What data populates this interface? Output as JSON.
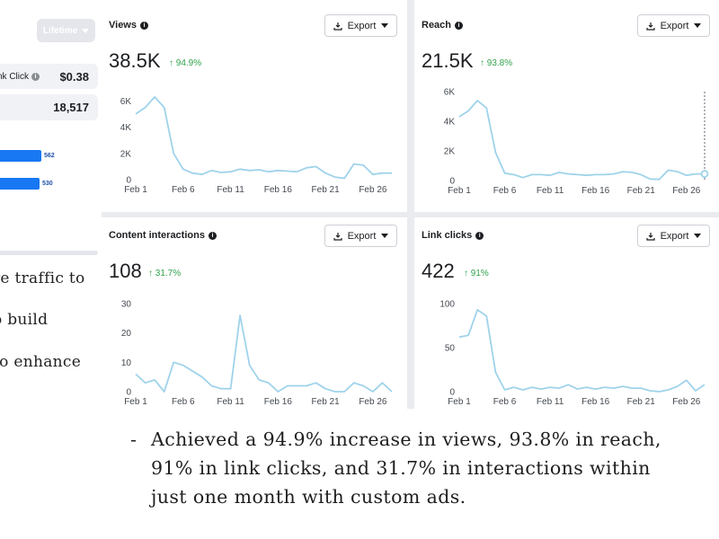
{
  "left_panel": {
    "date_range": "Lifetime",
    "cpc_label": "nk Click",
    "cpc_value": "$0.38",
    "total_value": "18,517",
    "bar1_value": "562",
    "bar1_fraction": 0.42,
    "bar2_value": "530",
    "bar2_fraction": 0.4,
    "text_lines": [
      "re traffic to",
      "o build",
      "to enhance"
    ]
  },
  "export_label": "Export",
  "cards": {
    "views": {
      "title": "Views",
      "value": "38.5K",
      "delta": "↑ 94.9%"
    },
    "reach": {
      "title": "Reach",
      "value": "21.5K",
      "delta": "↑ 93.8%"
    },
    "interactions": {
      "title": "Content interactions",
      "value": "108",
      "delta": "↑ 31.7%"
    },
    "link_clicks": {
      "title": "Link clicks",
      "value": "422",
      "delta": "↑ 91%"
    }
  },
  "caption": {
    "bullet": "-",
    "lines": [
      "Achieved a 94.9% increase in views, 93.8% in reach,",
      "91% in link clicks, and 31.7% in interactions within",
      "just one month with custom ads."
    ]
  },
  "colors": {
    "line": "#9fd3ea",
    "accent": "#31a24c",
    "bar": "#1877f2"
  },
  "chart_data": [
    {
      "id": "views",
      "type": "line",
      "title": "Views",
      "x": [
        1,
        2,
        3,
        4,
        5,
        6,
        7,
        8,
        9,
        10,
        11,
        12,
        13,
        14,
        15,
        16,
        17,
        18,
        19,
        20,
        21,
        22,
        23,
        24,
        25,
        26,
        27,
        28
      ],
      "xticks": [
        "Feb 1",
        "Feb 6",
        "Feb 11",
        "Feb 16",
        "Feb 21",
        "Feb 26"
      ],
      "xtick_positions": [
        1,
        6,
        11,
        16,
        21,
        26
      ],
      "yticks": [
        0,
        2000,
        4000,
        6000
      ],
      "ytick_labels": [
        "0",
        "2K",
        "4K",
        "6K"
      ],
      "ylim": [
        0,
        6500
      ],
      "values": [
        5000,
        5500,
        6300,
        5500,
        2000,
        800,
        500,
        400,
        700,
        550,
        600,
        800,
        700,
        750,
        600,
        700,
        650,
        600,
        900,
        1000,
        500,
        200,
        100,
        1200,
        1100,
        400,
        500,
        500
      ]
    },
    {
      "id": "reach",
      "type": "line",
      "title": "Reach",
      "x": [
        1,
        2,
        3,
        4,
        5,
        6,
        7,
        8,
        9,
        10,
        11,
        12,
        13,
        14,
        15,
        16,
        17,
        18,
        19,
        20,
        21,
        22,
        23,
        24,
        25,
        26,
        27,
        28
      ],
      "xticks": [
        "Feb 1",
        "Feb 6",
        "Feb 11",
        "Feb 16",
        "Feb 21",
        "Feb 26"
      ],
      "xtick_positions": [
        1,
        6,
        11,
        16,
        21,
        26
      ],
      "yticks": [
        0,
        2000,
        4000,
        6000
      ],
      "ytick_labels": [
        "0",
        "2K",
        "4K",
        "6K"
      ],
      "ylim": [
        0,
        6000
      ],
      "values": [
        4300,
        4700,
        5400,
        4900,
        1900,
        500,
        400,
        200,
        400,
        400,
        350,
        550,
        450,
        400,
        350,
        400,
        400,
        450,
        600,
        550,
        400,
        100,
        80,
        700,
        600,
        350,
        450,
        450
      ]
    },
    {
      "id": "interactions",
      "type": "line",
      "title": "Content interactions",
      "x": [
        1,
        2,
        3,
        4,
        5,
        6,
        7,
        8,
        9,
        10,
        11,
        12,
        13,
        14,
        15,
        16,
        17,
        18,
        19,
        20,
        21,
        22,
        23,
        24,
        25,
        26,
        27,
        28
      ],
      "xticks": [
        "Feb 1",
        "Feb 6",
        "Feb 11",
        "Feb 16",
        "Feb 21",
        "Feb 26"
      ],
      "xtick_positions": [
        1,
        6,
        11,
        16,
        21,
        26
      ],
      "yticks": [
        0,
        10,
        20,
        30
      ],
      "ytick_labels": [
        "0",
        "10",
        "20",
        "30"
      ],
      "ylim": [
        0,
        30
      ],
      "values": [
        6,
        3,
        4,
        0,
        10,
        9,
        7,
        5,
        2,
        1,
        1,
        26,
        9,
        4,
        3,
        0,
        2,
        2,
        2,
        3,
        1,
        0,
        0,
        3,
        2,
        0,
        3,
        0
      ]
    },
    {
      "id": "link_clicks",
      "type": "line",
      "title": "Link clicks",
      "x": [
        1,
        2,
        3,
        4,
        5,
        6,
        7,
        8,
        9,
        10,
        11,
        12,
        13,
        14,
        15,
        16,
        17,
        18,
        19,
        20,
        21,
        22,
        23,
        24,
        25,
        26,
        27,
        28
      ],
      "xticks": [
        "Feb 1",
        "Feb 6",
        "Feb 11",
        "Feb 16",
        "Feb 21",
        "Feb 26"
      ],
      "xtick_positions": [
        1,
        6,
        11,
        16,
        21,
        26
      ],
      "yticks": [
        0,
        50,
        100
      ],
      "ytick_labels": [
        "0",
        "50",
        "100"
      ],
      "ylim": [
        0,
        100
      ],
      "values": [
        62,
        64,
        93,
        86,
        22,
        2,
        5,
        2,
        5,
        3,
        5,
        4,
        8,
        3,
        5,
        3,
        5,
        4,
        6,
        4,
        4,
        1,
        0,
        2,
        6,
        13,
        1,
        8
      ]
    }
  ]
}
